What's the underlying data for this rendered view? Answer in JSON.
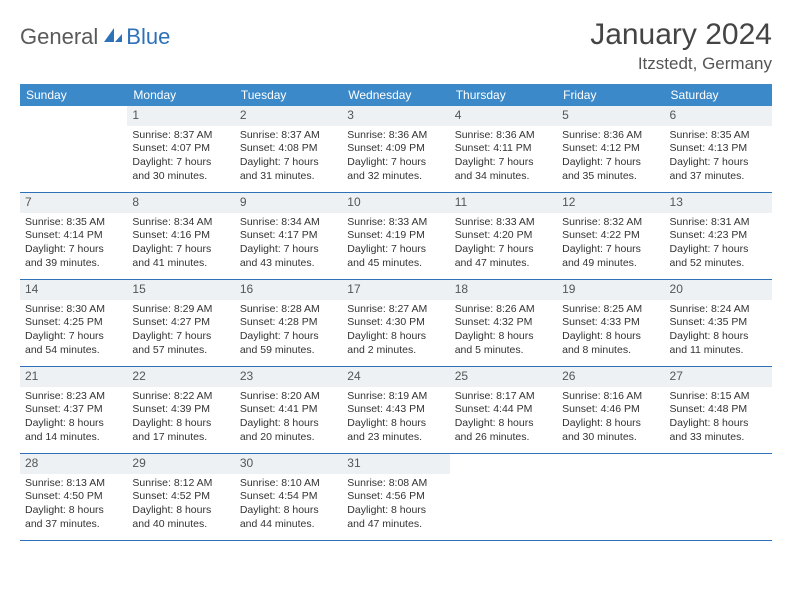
{
  "logo": {
    "text1": "General",
    "text2": "Blue"
  },
  "title": "January 2024",
  "location": "Itzstedt, Germany",
  "colors": {
    "header_bg": "#3b89c9",
    "divider": "#2d72b8",
    "daynum_bg": "#eef1f3",
    "logo_gray": "#5a5a5a",
    "logo_blue": "#2d72b8"
  },
  "weekdays": [
    "Sunday",
    "Monday",
    "Tuesday",
    "Wednesday",
    "Thursday",
    "Friday",
    "Saturday"
  ],
  "weeks": [
    [
      null,
      {
        "n": "1",
        "sr": "Sunrise: 8:37 AM",
        "ss": "Sunset: 4:07 PM",
        "d1": "Daylight: 7 hours",
        "d2": "and 30 minutes."
      },
      {
        "n": "2",
        "sr": "Sunrise: 8:37 AM",
        "ss": "Sunset: 4:08 PM",
        "d1": "Daylight: 7 hours",
        "d2": "and 31 minutes."
      },
      {
        "n": "3",
        "sr": "Sunrise: 8:36 AM",
        "ss": "Sunset: 4:09 PM",
        "d1": "Daylight: 7 hours",
        "d2": "and 32 minutes."
      },
      {
        "n": "4",
        "sr": "Sunrise: 8:36 AM",
        "ss": "Sunset: 4:11 PM",
        "d1": "Daylight: 7 hours",
        "d2": "and 34 minutes."
      },
      {
        "n": "5",
        "sr": "Sunrise: 8:36 AM",
        "ss": "Sunset: 4:12 PM",
        "d1": "Daylight: 7 hours",
        "d2": "and 35 minutes."
      },
      {
        "n": "6",
        "sr": "Sunrise: 8:35 AM",
        "ss": "Sunset: 4:13 PM",
        "d1": "Daylight: 7 hours",
        "d2": "and 37 minutes."
      }
    ],
    [
      {
        "n": "7",
        "sr": "Sunrise: 8:35 AM",
        "ss": "Sunset: 4:14 PM",
        "d1": "Daylight: 7 hours",
        "d2": "and 39 minutes."
      },
      {
        "n": "8",
        "sr": "Sunrise: 8:34 AM",
        "ss": "Sunset: 4:16 PM",
        "d1": "Daylight: 7 hours",
        "d2": "and 41 minutes."
      },
      {
        "n": "9",
        "sr": "Sunrise: 8:34 AM",
        "ss": "Sunset: 4:17 PM",
        "d1": "Daylight: 7 hours",
        "d2": "and 43 minutes."
      },
      {
        "n": "10",
        "sr": "Sunrise: 8:33 AM",
        "ss": "Sunset: 4:19 PM",
        "d1": "Daylight: 7 hours",
        "d2": "and 45 minutes."
      },
      {
        "n": "11",
        "sr": "Sunrise: 8:33 AM",
        "ss": "Sunset: 4:20 PM",
        "d1": "Daylight: 7 hours",
        "d2": "and 47 minutes."
      },
      {
        "n": "12",
        "sr": "Sunrise: 8:32 AM",
        "ss": "Sunset: 4:22 PM",
        "d1": "Daylight: 7 hours",
        "d2": "and 49 minutes."
      },
      {
        "n": "13",
        "sr": "Sunrise: 8:31 AM",
        "ss": "Sunset: 4:23 PM",
        "d1": "Daylight: 7 hours",
        "d2": "and 52 minutes."
      }
    ],
    [
      {
        "n": "14",
        "sr": "Sunrise: 8:30 AM",
        "ss": "Sunset: 4:25 PM",
        "d1": "Daylight: 7 hours",
        "d2": "and 54 minutes."
      },
      {
        "n": "15",
        "sr": "Sunrise: 8:29 AM",
        "ss": "Sunset: 4:27 PM",
        "d1": "Daylight: 7 hours",
        "d2": "and 57 minutes."
      },
      {
        "n": "16",
        "sr": "Sunrise: 8:28 AM",
        "ss": "Sunset: 4:28 PM",
        "d1": "Daylight: 7 hours",
        "d2": "and 59 minutes."
      },
      {
        "n": "17",
        "sr": "Sunrise: 8:27 AM",
        "ss": "Sunset: 4:30 PM",
        "d1": "Daylight: 8 hours",
        "d2": "and 2 minutes."
      },
      {
        "n": "18",
        "sr": "Sunrise: 8:26 AM",
        "ss": "Sunset: 4:32 PM",
        "d1": "Daylight: 8 hours",
        "d2": "and 5 minutes."
      },
      {
        "n": "19",
        "sr": "Sunrise: 8:25 AM",
        "ss": "Sunset: 4:33 PM",
        "d1": "Daylight: 8 hours",
        "d2": "and 8 minutes."
      },
      {
        "n": "20",
        "sr": "Sunrise: 8:24 AM",
        "ss": "Sunset: 4:35 PM",
        "d1": "Daylight: 8 hours",
        "d2": "and 11 minutes."
      }
    ],
    [
      {
        "n": "21",
        "sr": "Sunrise: 8:23 AM",
        "ss": "Sunset: 4:37 PM",
        "d1": "Daylight: 8 hours",
        "d2": "and 14 minutes."
      },
      {
        "n": "22",
        "sr": "Sunrise: 8:22 AM",
        "ss": "Sunset: 4:39 PM",
        "d1": "Daylight: 8 hours",
        "d2": "and 17 minutes."
      },
      {
        "n": "23",
        "sr": "Sunrise: 8:20 AM",
        "ss": "Sunset: 4:41 PM",
        "d1": "Daylight: 8 hours",
        "d2": "and 20 minutes."
      },
      {
        "n": "24",
        "sr": "Sunrise: 8:19 AM",
        "ss": "Sunset: 4:43 PM",
        "d1": "Daylight: 8 hours",
        "d2": "and 23 minutes."
      },
      {
        "n": "25",
        "sr": "Sunrise: 8:17 AM",
        "ss": "Sunset: 4:44 PM",
        "d1": "Daylight: 8 hours",
        "d2": "and 26 minutes."
      },
      {
        "n": "26",
        "sr": "Sunrise: 8:16 AM",
        "ss": "Sunset: 4:46 PM",
        "d1": "Daylight: 8 hours",
        "d2": "and 30 minutes."
      },
      {
        "n": "27",
        "sr": "Sunrise: 8:15 AM",
        "ss": "Sunset: 4:48 PM",
        "d1": "Daylight: 8 hours",
        "d2": "and 33 minutes."
      }
    ],
    [
      {
        "n": "28",
        "sr": "Sunrise: 8:13 AM",
        "ss": "Sunset: 4:50 PM",
        "d1": "Daylight: 8 hours",
        "d2": "and 37 minutes."
      },
      {
        "n": "29",
        "sr": "Sunrise: 8:12 AM",
        "ss": "Sunset: 4:52 PM",
        "d1": "Daylight: 8 hours",
        "d2": "and 40 minutes."
      },
      {
        "n": "30",
        "sr": "Sunrise: 8:10 AM",
        "ss": "Sunset: 4:54 PM",
        "d1": "Daylight: 8 hours",
        "d2": "and 44 minutes."
      },
      {
        "n": "31",
        "sr": "Sunrise: 8:08 AM",
        "ss": "Sunset: 4:56 PM",
        "d1": "Daylight: 8 hours",
        "d2": "and 47 minutes."
      },
      null,
      null,
      null
    ]
  ]
}
